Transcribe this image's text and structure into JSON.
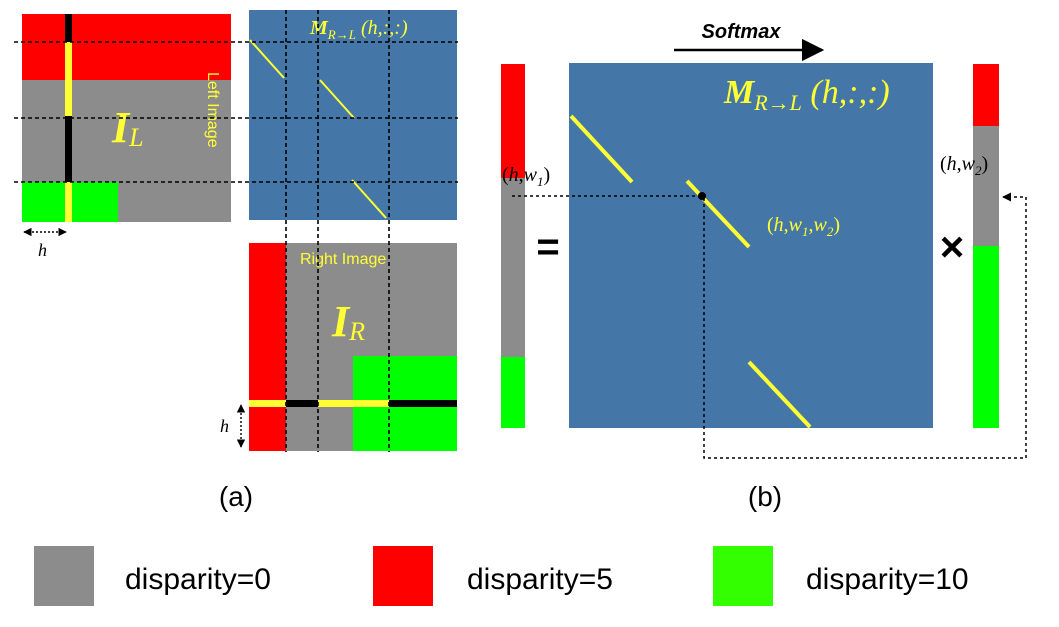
{
  "panel_a": {
    "left_image": {
      "symbol": "I",
      "subscript": "L",
      "side_label": "Left Image",
      "h_label": "h"
    },
    "attention_map": {
      "symbol": "M",
      "subscript": "R→L",
      "args": " (h,:,:)"
    },
    "right_image": {
      "symbol": "I",
      "subscript": "R",
      "top_label": "Right Image",
      "h_label": "h"
    },
    "caption": "(a)"
  },
  "panel_b": {
    "softmax_label": "Softmax",
    "map": {
      "symbol": "M",
      "subscript": "R→L",
      "args": " (h,:,:)"
    },
    "left_vector_label": {
      "open": "(",
      "h": "h",
      "comma": ",",
      "w": "w",
      "sub": "1",
      "close": ")"
    },
    "entry_label": {
      "open": "(",
      "h": "h",
      "comma1": ",",
      "w1": "w",
      "sub1": "1",
      "comma2": ",",
      "w2": "w",
      "sub2": "2",
      "close": ")"
    },
    "right_vector_label": {
      "open": "(",
      "h": "h",
      "comma": ",",
      "w": "w",
      "sub": "2",
      "close": ")"
    },
    "equals": "=",
    "times": "×",
    "caption": "(b)"
  },
  "legend": [
    {
      "label": "disparity=0",
      "color": "#8c8c8c"
    },
    {
      "label": "disparity=5",
      "color": "#ff0000"
    },
    {
      "label": "disparity=10",
      "color": "#33ff00"
    }
  ],
  "colors": {
    "gray": "#8c8c8c",
    "red": "#ff0000",
    "green": "#00ff00",
    "blue": "#4477a8",
    "yellow": "#ffff33",
    "black": "#000000"
  }
}
